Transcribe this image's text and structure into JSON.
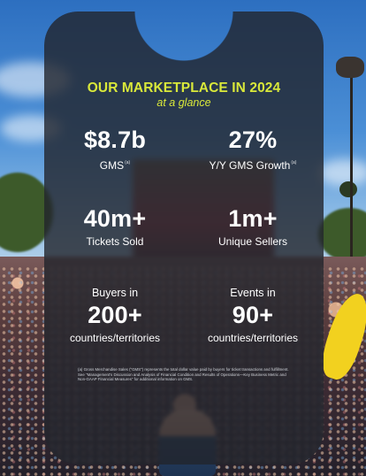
{
  "header": {
    "title": "OUR MARKETPLACE IN 2024",
    "subtitle": "at a glance"
  },
  "stats": [
    {
      "value": "$8.7b",
      "label": "GMS",
      "note_marker": "(a)"
    },
    {
      "value": "27%",
      "label": "Y/Y GMS Growth",
      "note_marker": "(a)"
    },
    {
      "value": "40m+",
      "label": "Tickets Sold"
    },
    {
      "value": "1m+",
      "label": "Unique Sellers"
    },
    {
      "pre_label": "Buyers in",
      "value": "200+",
      "label": "countries/territories"
    },
    {
      "pre_label": "Events in",
      "value": "90+",
      "label": "countries/territories"
    }
  ],
  "footnote": "(a) Gross Merchandise Sales (\"GMS\") represents the total dollar value paid by buyers for ticket transactions and fulfillment. See \"Management's Discussion and Analysis of Financial Condition and Results of Operations—Key Business Metric and Non-GAAP Financial Measures\" for additional information on GMS.",
  "colors": {
    "headline": "#d9e83a",
    "card": "#22242c",
    "text": "#ffffff"
  }
}
